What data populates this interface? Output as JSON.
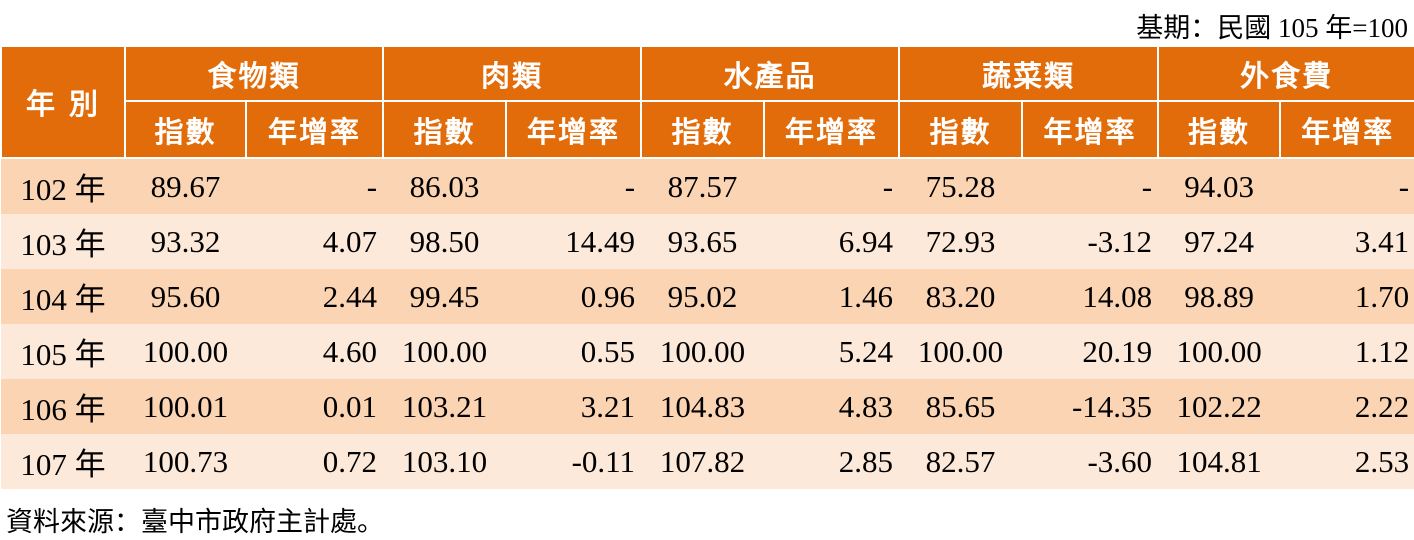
{
  "note": "基期：民國 105 年=100",
  "table": {
    "year_header": "年 別",
    "groups": [
      {
        "name": "食物類",
        "columns": [
          "指數",
          "年增率"
        ]
      },
      {
        "name": "肉類",
        "columns": [
          "指數",
          "年增率"
        ]
      },
      {
        "name": "水產品",
        "columns": [
          "指數",
          "年增率"
        ]
      },
      {
        "name": "蔬菜類",
        "columns": [
          "指數",
          "年增率"
        ]
      },
      {
        "name": "外食費",
        "columns": [
          "指數",
          "年增率"
        ]
      }
    ],
    "rows": [
      [
        "102 年",
        "89.67",
        "-",
        "86.03",
        "-",
        "87.57",
        "-",
        "75.28",
        "-",
        "94.03",
        "-"
      ],
      [
        "103 年",
        "93.32",
        "4.07",
        "98.50",
        "14.49",
        "93.65",
        "6.94",
        "72.93",
        "-3.12",
        "97.24",
        "3.41"
      ],
      [
        "104 年",
        "95.60",
        "2.44",
        "99.45",
        "0.96",
        "95.02",
        "1.46",
        "83.20",
        "14.08",
        "98.89",
        "1.70"
      ],
      [
        "105 年",
        "100.00",
        "4.60",
        "100.00",
        "0.55",
        "100.00",
        "5.24",
        "100.00",
        "20.19",
        "100.00",
        "1.12"
      ],
      [
        "106 年",
        "100.01",
        "0.01",
        "103.21",
        "3.21",
        "104.83",
        "4.83",
        "85.65",
        "-14.35",
        "102.22",
        "2.22"
      ],
      [
        "107 年",
        "100.73",
        "0.72",
        "103.10",
        "-0.11",
        "107.82",
        "2.85",
        "82.57",
        "-3.60",
        "104.81",
        "2.53"
      ]
    ]
  },
  "source": "資料來源：臺中市政府主計處。"
}
